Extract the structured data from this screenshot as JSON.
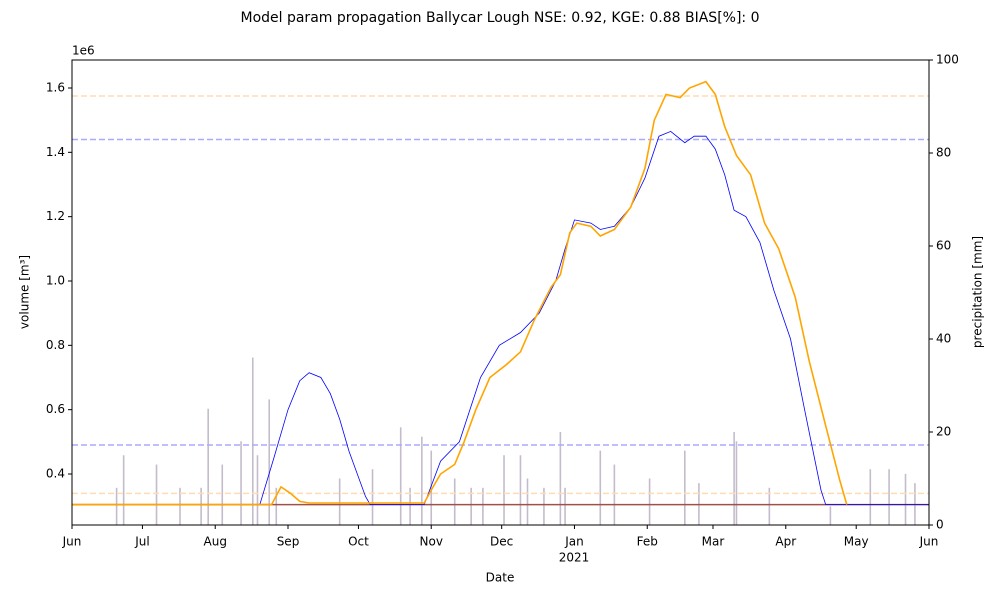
{
  "chart_data": {
    "type": "line",
    "title": "Model param propagation Ballycar Lough NSE: 0.92, KGE: 0.88 BIAS[%]: 0",
    "x_label": "Date",
    "y_label": "volume [m³]",
    "y_offset_label": "1e6",
    "y2_label": "precipitation [mm]",
    "year_label": "2021",
    "xlim": [
      0,
      365
    ],
    "xticks": [
      {
        "value": 0,
        "label": "Jun"
      },
      {
        "value": 30,
        "label": "Jul"
      },
      {
        "value": 61,
        "label": "Aug"
      },
      {
        "value": 92,
        "label": "Sep"
      },
      {
        "value": 122,
        "label": "Oct"
      },
      {
        "value": 153,
        "label": "Nov"
      },
      {
        "value": 183,
        "label": "Dec"
      },
      {
        "value": 214,
        "label": "Jan"
      },
      {
        "value": 245,
        "label": "Feb"
      },
      {
        "value": 273,
        "label": "Mar"
      },
      {
        "value": 304,
        "label": "Apr"
      },
      {
        "value": 334,
        "label": "May"
      },
      {
        "value": 365,
        "label": "Jun"
      }
    ],
    "ylim": [
      241500,
      1687000
    ],
    "yticks": [
      {
        "value": 400000,
        "label": "0.4"
      },
      {
        "value": 600000,
        "label": "0.6"
      },
      {
        "value": 800000,
        "label": "0.8"
      },
      {
        "value": 1000000,
        "label": "1.0"
      },
      {
        "value": 1200000,
        "label": "1.2"
      },
      {
        "value": 1400000,
        "label": "1.4"
      },
      {
        "value": 1600000,
        "label": "1.6"
      }
    ],
    "y2lim": [
      0,
      100
    ],
    "y2ticks": [
      0,
      20,
      40,
      60,
      80,
      100
    ],
    "reference_lines": [
      {
        "value": 1575000,
        "color": "#ffdcb4",
        "dashed": true
      },
      {
        "value": 1440000,
        "color": "#aaaaff",
        "dashed": true
      },
      {
        "value": 490000,
        "color": "#aaaaff",
        "dashed": true
      },
      {
        "value": 340000,
        "color": "#ffdcb4",
        "dashed": true
      },
      {
        "value": 305000,
        "color": "#a0504a",
        "dashed": false
      }
    ],
    "series": [
      {
        "type": "bar",
        "axis": "y2",
        "color": "#c4bccc",
        "x": [
          19,
          22,
          36,
          46,
          55,
          58,
          64,
          72,
          77,
          79,
          84,
          87,
          114,
          128,
          140,
          144,
          149,
          153,
          163,
          170,
          175,
          184,
          191,
          194,
          201,
          208,
          210,
          225,
          231,
          246,
          261,
          267,
          282,
          283,
          297,
          323,
          340,
          348,
          355,
          359
        ],
        "values": [
          8,
          15,
          13,
          8,
          8,
          25,
          13,
          18,
          36,
          15,
          27,
          8,
          10,
          12,
          21,
          8,
          19,
          16,
          10,
          8,
          8,
          15,
          15,
          10,
          8,
          20,
          8,
          16,
          13,
          10,
          16,
          9,
          20,
          18,
          8,
          4,
          12,
          12,
          11,
          9
        ]
      },
      {
        "type": "line",
        "color": "#0000ff",
        "width": 0.8,
        "x": [
          0,
          80,
          86,
          92,
          97,
          101,
          106,
          110,
          114,
          118,
          125,
          127,
          150,
          157,
          165,
          174,
          182,
          191,
          199,
          206,
          210,
          214,
          221,
          225,
          231,
          238,
          244,
          250,
          255,
          261,
          265,
          270,
          274,
          278,
          282,
          287,
          293,
          299,
          306,
          312,
          319,
          321,
          365
        ],
        "values": [
          305000,
          305000,
          450000,
          600000,
          690000,
          715000,
          700000,
          650000,
          570000,
          470000,
          330000,
          305000,
          305000,
          440000,
          500000,
          700000,
          800000,
          840000,
          900000,
          1000000,
          1100000,
          1190000,
          1180000,
          1160000,
          1170000,
          1230000,
          1320000,
          1450000,
          1465000,
          1430000,
          1450000,
          1450000,
          1410000,
          1330000,
          1220000,
          1200000,
          1120000,
          970000,
          820000,
          600000,
          350000,
          305000,
          305000
        ]
      },
      {
        "type": "line",
        "color": "#ffa500",
        "width": 1.6,
        "x": [
          0,
          85,
          89,
          93,
          97,
          101,
          150,
          153,
          157,
          163,
          167,
          172,
          178,
          185,
          191,
          197,
          204,
          208,
          212,
          215,
          221,
          225,
          231,
          238,
          244,
          248,
          253,
          259,
          263,
          270,
          274,
          278,
          283,
          289,
          295,
          301,
          308,
          314,
          321,
          327,
          330
        ],
        "values": [
          305000,
          305000,
          360000,
          340000,
          315000,
          310000,
          310000,
          350000,
          400000,
          430000,
          500000,
          600000,
          700000,
          740000,
          780000,
          880000,
          980000,
          1020000,
          1150000,
          1180000,
          1170000,
          1140000,
          1160000,
          1230000,
          1350000,
          1500000,
          1580000,
          1570000,
          1600000,
          1620000,
          1580000,
          1480000,
          1390000,
          1330000,
          1180000,
          1100000,
          950000,
          750000,
          550000,
          380000,
          305000
        ]
      }
    ]
  }
}
